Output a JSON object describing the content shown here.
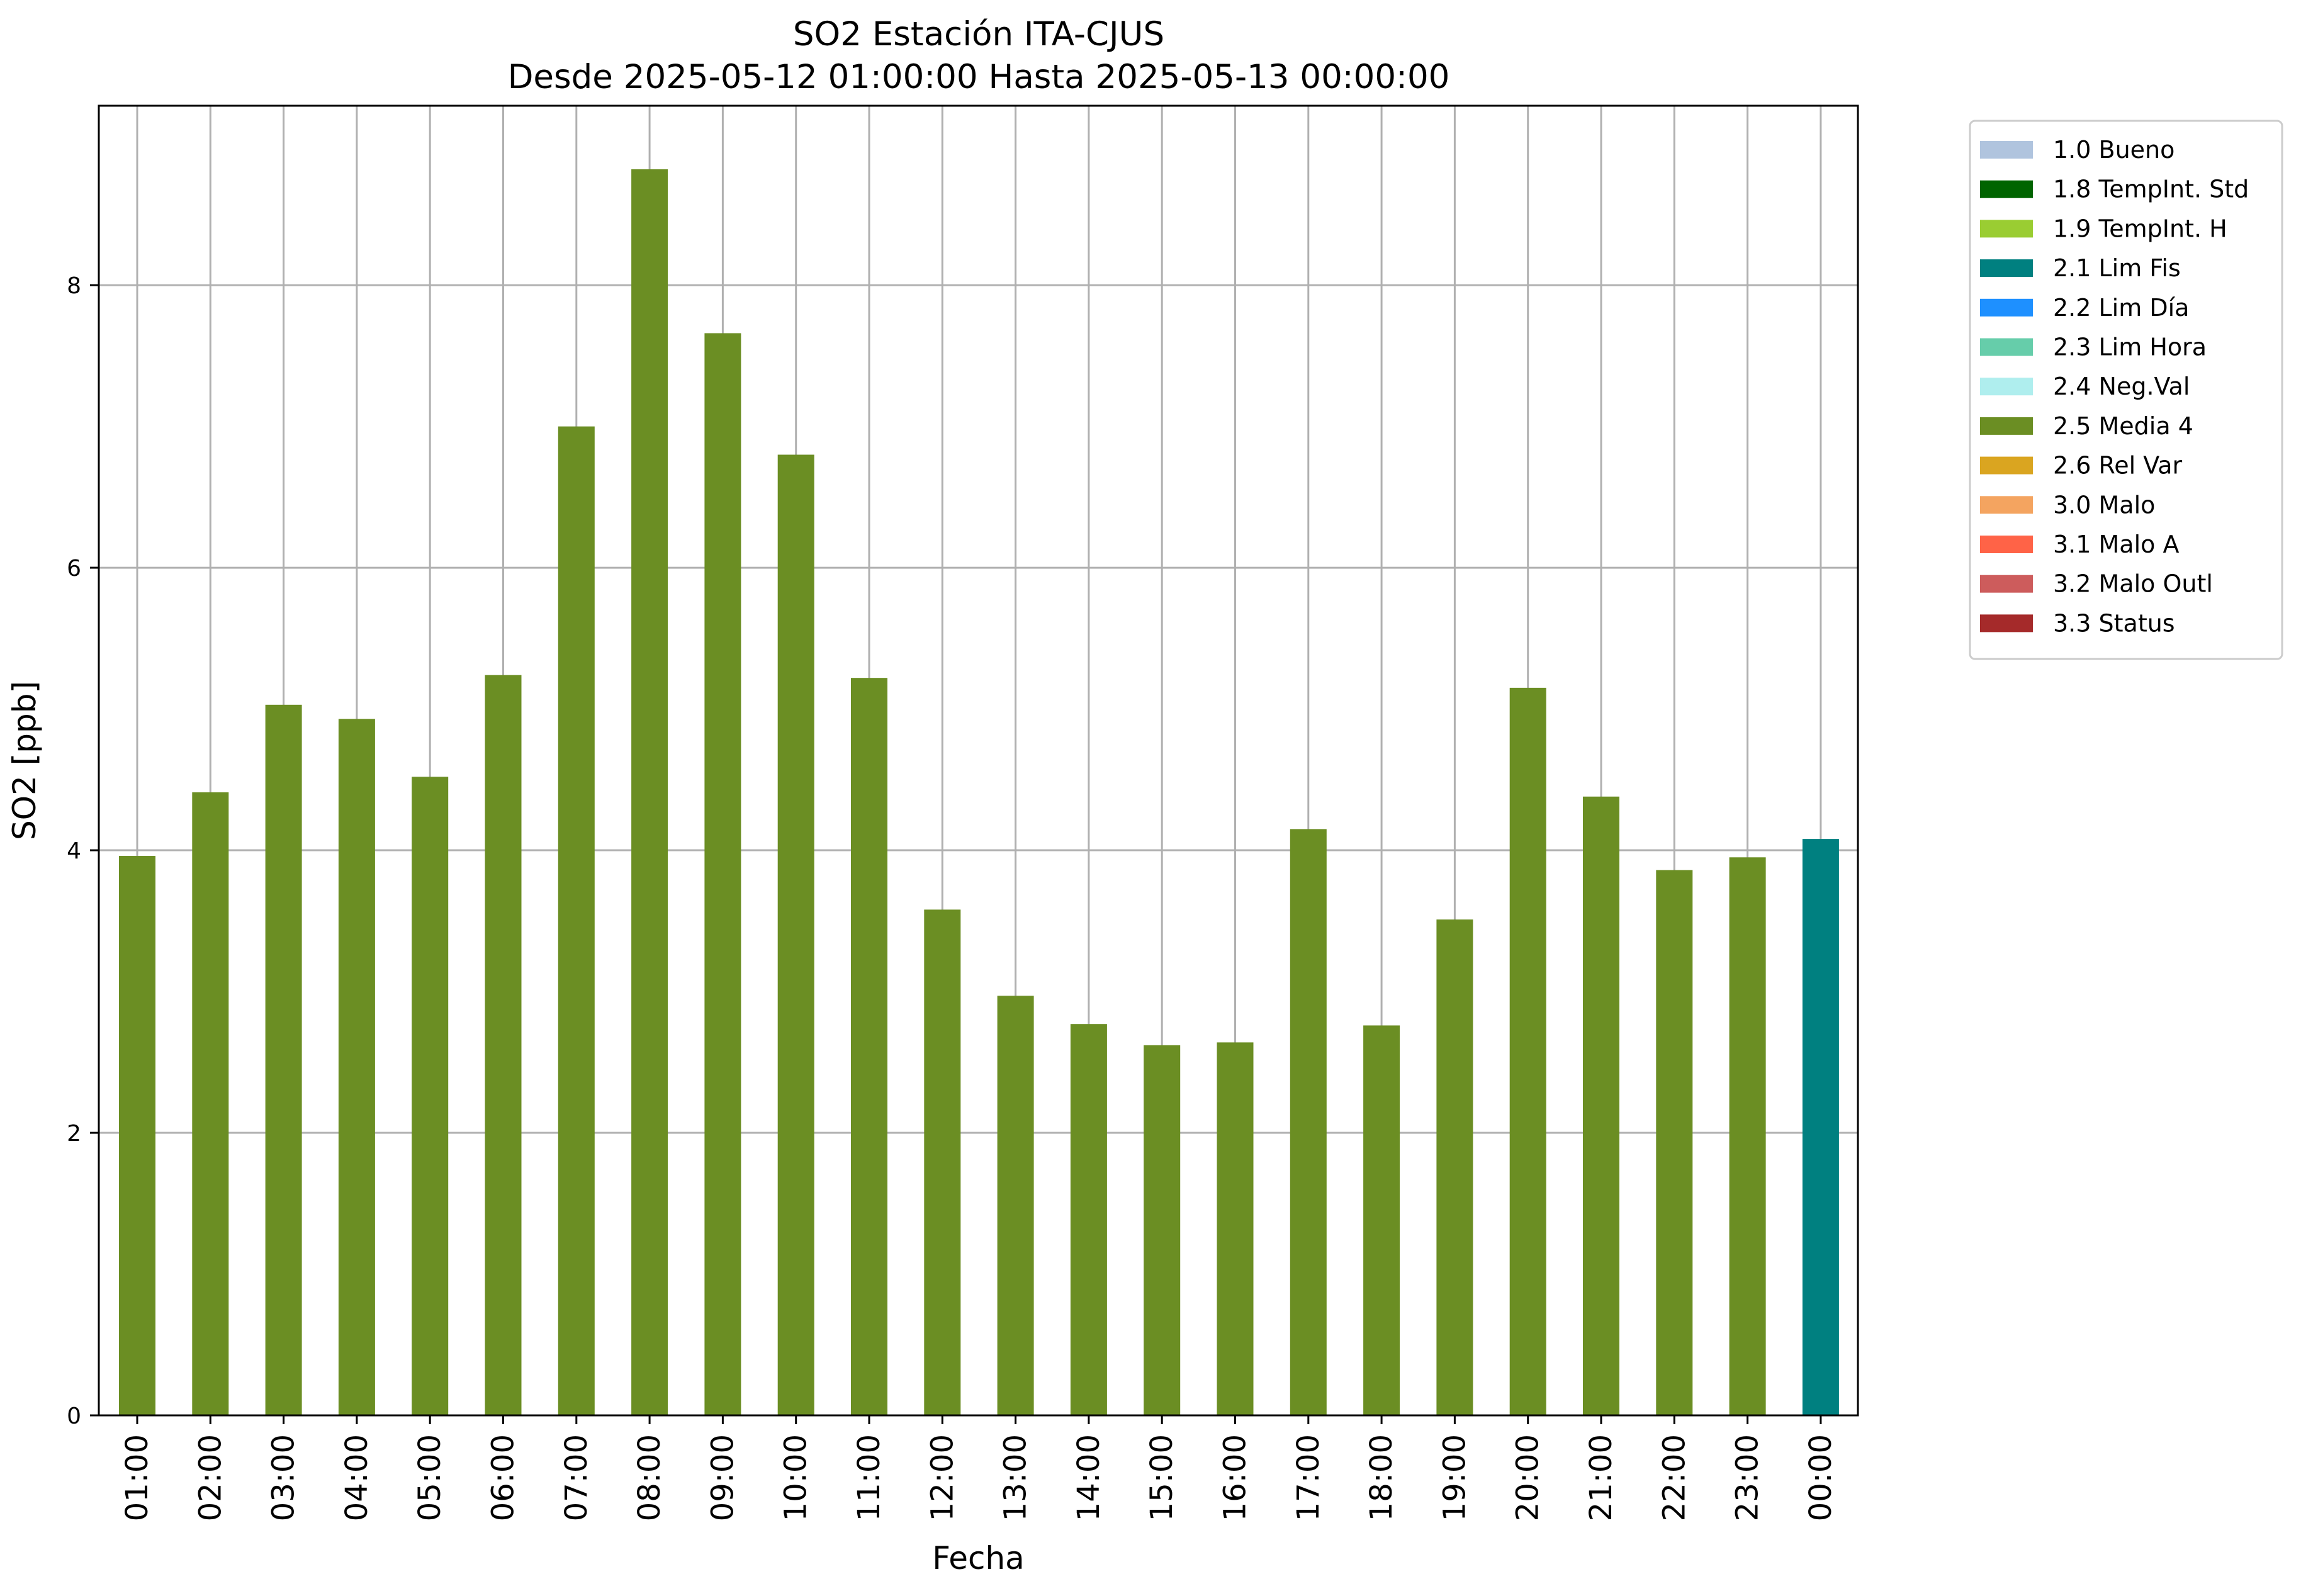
{
  "chart_data": {
    "type": "bar",
    "title": "SO2 Estación ITA-CJUS",
    "subtitle": "Desde 2025-05-12 01:00:00 Hasta 2025-05-13 00:00:00",
    "xlabel": "Fecha",
    "ylabel": "SO2 [ppb]",
    "ylim": [
      0,
      9.27
    ],
    "yticks": [
      0,
      2,
      4,
      6,
      8
    ],
    "grid": true,
    "legend_position": "outside-right",
    "categories": [
      "01:00",
      "02:00",
      "03:00",
      "04:00",
      "05:00",
      "06:00",
      "07:00",
      "08:00",
      "09:00",
      "10:00",
      "11:00",
      "12:00",
      "13:00",
      "14:00",
      "15:00",
      "16:00",
      "17:00",
      "18:00",
      "19:00",
      "20:00",
      "21:00",
      "22:00",
      "23:00",
      "00:00"
    ],
    "values": [
      3.96,
      4.41,
      5.03,
      4.93,
      4.52,
      5.24,
      7.0,
      8.82,
      7.66,
      6.8,
      5.22,
      3.58,
      2.97,
      2.77,
      2.62,
      2.64,
      4.15,
      2.76,
      3.51,
      5.15,
      4.38,
      3.86,
      3.95,
      4.08
    ],
    "flags": [
      "2.5 Media 4",
      "2.5 Media 4",
      "2.5 Media 4",
      "2.5 Media 4",
      "2.5 Media 4",
      "2.5 Media 4",
      "2.5 Media 4",
      "2.5 Media 4",
      "2.5 Media 4",
      "2.5 Media 4",
      "2.5 Media 4",
      "2.5 Media 4",
      "2.5 Media 4",
      "2.5 Media 4",
      "2.5 Media 4",
      "2.5 Media 4",
      "2.5 Media 4",
      "2.5 Media 4",
      "2.5 Media 4",
      "2.5 Media 4",
      "2.5 Media 4",
      "2.5 Media 4",
      "2.5 Media 4",
      "2.1 Lim Fis"
    ],
    "legend": [
      {
        "label": "1.0 Bueno",
        "color": "#b0c4de"
      },
      {
        "label": "1.8 TempInt. Std",
        "color": "#006400"
      },
      {
        "label": "1.9 TempInt. H",
        "color": "#9acd32"
      },
      {
        "label": "2.1 Lim Fis",
        "color": "#008080"
      },
      {
        "label": "2.2 Lim Día",
        "color": "#1e90ff"
      },
      {
        "label": "2.3 Lim Hora",
        "color": "#66cdaa"
      },
      {
        "label": "2.4 Neg.Val",
        "color": "#afeeee"
      },
      {
        "label": "2.5 Media 4",
        "color": "#6b8e23"
      },
      {
        "label": "2.6 Rel Var",
        "color": "#daa520"
      },
      {
        "label": "3.0 Malo",
        "color": "#f4a460"
      },
      {
        "label": "3.1 Malo A",
        "color": "#ff6347"
      },
      {
        "label": "3.2 Malo Outl",
        "color": "#cd5c5c"
      },
      {
        "label": "3.3 Status",
        "color": "#a52a2a"
      }
    ]
  }
}
